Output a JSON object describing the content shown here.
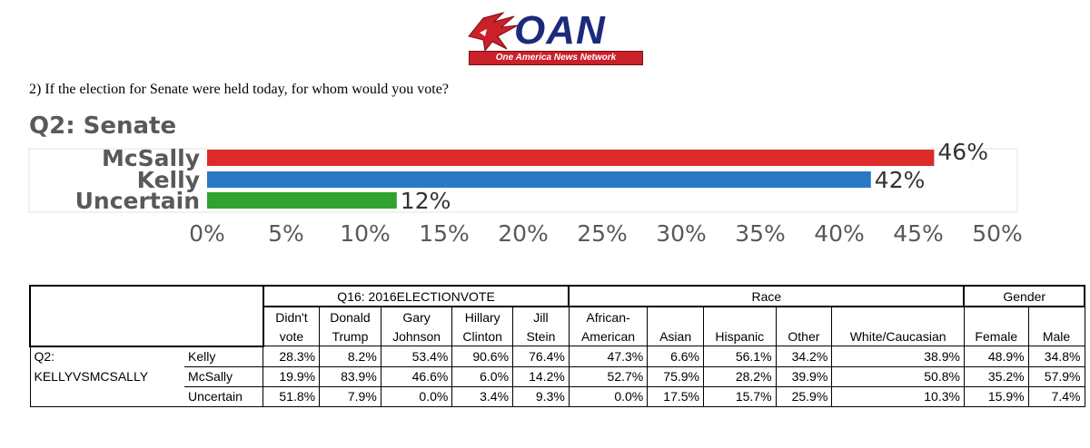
{
  "logo": {
    "name": "OAN",
    "tagline": "One America News Network"
  },
  "question": "2) If the election for Senate were held today, for whom would you vote?",
  "chart_data": {
    "type": "bar",
    "orientation": "horizontal",
    "title": "Q2: Senate",
    "categories": [
      "McSally",
      "Kelly",
      "Uncertain"
    ],
    "values": [
      46,
      42,
      12
    ],
    "value_labels": [
      "46%",
      "42%",
      "12%"
    ],
    "colors": [
      "#dc2b2b",
      "#2a78c4",
      "#2ea32e"
    ],
    "xlim": [
      0,
      50
    ],
    "xticks": [
      "0%",
      "5%",
      "10%",
      "15%",
      "20%",
      "25%",
      "30%",
      "35%",
      "40%",
      "45%",
      "50%"
    ],
    "grid": false
  },
  "table": {
    "group_headers": [
      "Q16: 2016ELECTIONVOTE",
      "Race",
      "Gender"
    ],
    "columns": [
      {
        "line1": "Didn't",
        "line2": "vote"
      },
      {
        "line1": "Donald",
        "line2": "Trump"
      },
      {
        "line1": "Gary",
        "line2": "Johnson"
      },
      {
        "line1": "Hillary",
        "line2": "Clinton"
      },
      {
        "line1": "Jill",
        "line2": "Stein"
      },
      {
        "line1": "African-",
        "line2": "American"
      },
      {
        "line1": "",
        "line2": "Asian"
      },
      {
        "line1": "",
        "line2": "Hispanic"
      },
      {
        "line1": "",
        "line2": "Other"
      },
      {
        "line1": "",
        "line2": "White/Caucasian"
      },
      {
        "line1": "",
        "line2": "Female"
      },
      {
        "line1": "",
        "line2": "Male"
      }
    ],
    "row_label_1": "Q2:",
    "row_label_2": "KELLYVSMCSALLY",
    "rows": [
      {
        "label": "Kelly",
        "values": [
          "28.3%",
          "8.2%",
          "53.4%",
          "90.6%",
          "76.4%",
          "47.3%",
          "6.6%",
          "56.1%",
          "34.2%",
          "38.9%",
          "48.9%",
          "34.8%"
        ]
      },
      {
        "label": "McSally",
        "values": [
          "19.9%",
          "83.9%",
          "46.6%",
          "6.0%",
          "14.2%",
          "52.7%",
          "75.9%",
          "28.2%",
          "39.9%",
          "50.8%",
          "35.2%",
          "57.9%"
        ]
      },
      {
        "label": "Uncertain",
        "values": [
          "51.8%",
          "7.9%",
          "0.0%",
          "3.4%",
          "9.3%",
          "0.0%",
          "17.5%",
          "15.7%",
          "25.9%",
          "10.3%",
          "15.9%",
          "7.4%"
        ]
      }
    ]
  }
}
